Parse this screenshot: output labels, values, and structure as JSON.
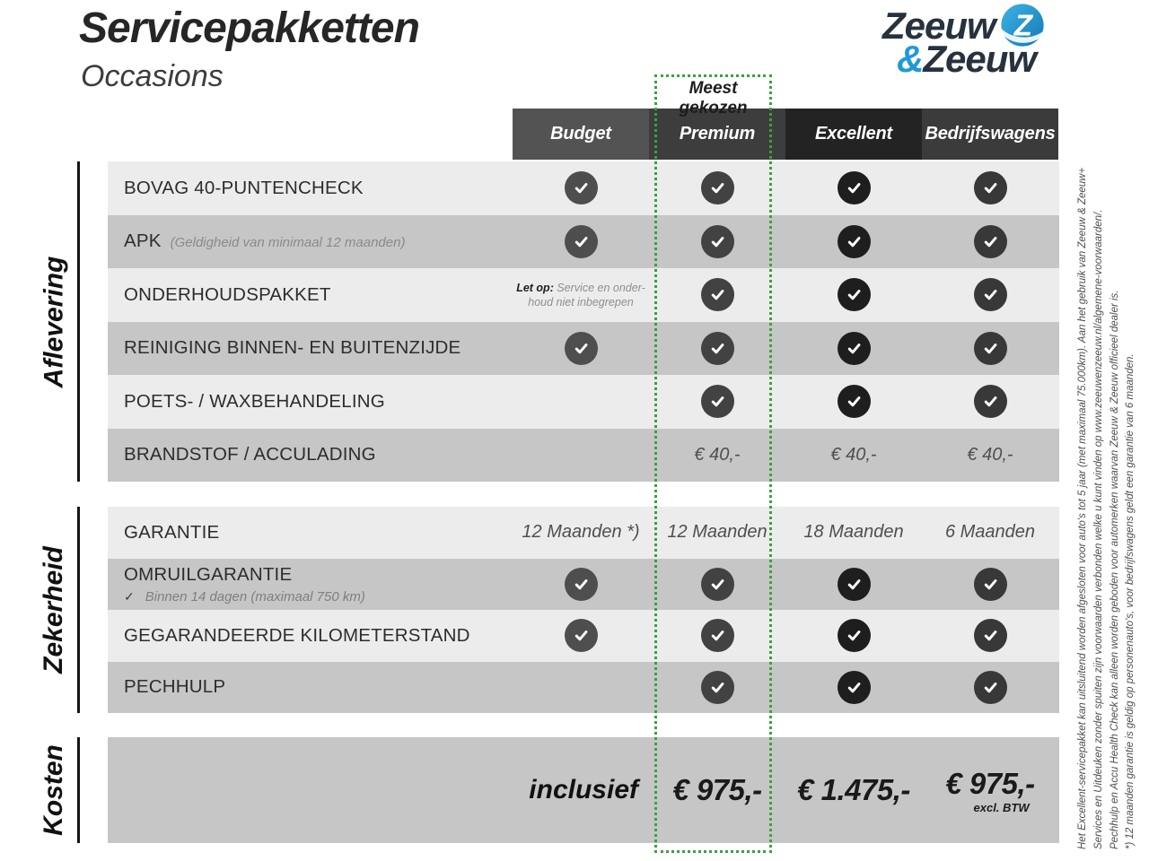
{
  "header": {
    "title": "Servicepakketten",
    "subtitle": "Occasions"
  },
  "logo": {
    "word1": "Zeeuw",
    "amp": "&",
    "word2": "Zeeuw"
  },
  "badge": {
    "label": "Meest gekozen"
  },
  "columns": [
    {
      "key": "budget",
      "label": "Budget",
      "header_color": "#535353",
      "check_color": "#4E4E4E"
    },
    {
      "key": "premium",
      "label": "Premium",
      "header_color": "#3D3D3D",
      "check_color": "#424242",
      "highlight": true
    },
    {
      "key": "excellent",
      "label": "Excellent",
      "header_color": "#232323",
      "check_color": "#1E1E1E"
    },
    {
      "key": "bedrijfswagens",
      "label": "Bedrijfswagens",
      "header_color": "#3B3B3B",
      "check_color": "#383838"
    }
  ],
  "sections": [
    {
      "label": "Aflevering",
      "rows": [
        {
          "label": "BOVAG 40-PUNTENCHECK",
          "cells": [
            {
              "t": "check"
            },
            {
              "t": "check"
            },
            {
              "t": "check"
            },
            {
              "t": "check"
            }
          ]
        },
        {
          "label": "APK",
          "note": "(Geldigheid van minimaal 12 maanden)",
          "cells": [
            {
              "t": "check"
            },
            {
              "t": "check"
            },
            {
              "t": "check"
            },
            {
              "t": "check"
            }
          ]
        },
        {
          "label": "ONDERHOUDSPAKKET",
          "cells": [
            {
              "t": "note",
              "bold": "Let op:",
              "lines": [
                "Service en onder-",
                "houd niet inbegrepen"
              ]
            },
            {
              "t": "check"
            },
            {
              "t": "check"
            },
            {
              "t": "check"
            }
          ]
        },
        {
          "label": "REINIGING BINNEN- EN BUITENZIJDE",
          "cells": [
            {
              "t": "check"
            },
            {
              "t": "check"
            },
            {
              "t": "check"
            },
            {
              "t": "check"
            }
          ]
        },
        {
          "label": "POETS- / WAXBEHANDELING",
          "cells": [
            null,
            {
              "t": "check"
            },
            {
              "t": "check"
            },
            {
              "t": "check"
            }
          ]
        },
        {
          "label": "BRANDSTOF / ACCULADING",
          "cells": [
            null,
            {
              "t": "txt",
              "v": "€ 40,-"
            },
            {
              "t": "txt",
              "v": "€ 40,-"
            },
            {
              "t": "txt",
              "v": "€ 40,-"
            }
          ]
        }
      ]
    },
    {
      "label": "Zekerheid",
      "rows": [
        {
          "label": "GARANTIE",
          "cells": [
            {
              "t": "txt",
              "v": "12 Maanden *)"
            },
            {
              "t": "txt",
              "v": "12 Maanden"
            },
            {
              "t": "txt",
              "v": "18 Maanden"
            },
            {
              "t": "txt",
              "v": "6 Maanden"
            }
          ]
        },
        {
          "label": "OMRUILGARANTIE",
          "sub_bullet": "✓",
          "sub": "Binnen 14 dagen (maximaal 750 km)",
          "cells": [
            {
              "t": "check"
            },
            {
              "t": "check"
            },
            {
              "t": "check"
            },
            {
              "t": "check"
            }
          ]
        },
        {
          "label": "GEGARANDEERDE KILOMETERSTAND",
          "cells": [
            {
              "t": "check"
            },
            {
              "t": "check"
            },
            {
              "t": "check"
            },
            {
              "t": "check"
            }
          ]
        },
        {
          "label": "PECHHULP",
          "cells": [
            null,
            {
              "t": "check"
            },
            {
              "t": "check"
            },
            {
              "t": "check"
            }
          ]
        }
      ]
    },
    {
      "label": "Kosten",
      "rows": [
        {
          "label": "",
          "cells": [
            {
              "t": "incl",
              "v": "inclusief"
            },
            {
              "t": "price",
              "v": "€ 975,-"
            },
            {
              "t": "price",
              "v": "€ 1.475,-"
            },
            {
              "t": "price",
              "v": "€ 975,-",
              "sub": "excl. BTW"
            }
          ]
        }
      ]
    }
  ],
  "fineprint": {
    "lines": [
      "Het Excellent-servicepakket kan uitsluitend worden afgesloten voor auto's tot 5 jaar (met maximaal 75.000km). Aan het gebruik van Zeeuw & Zeeuw+",
      "Services en Uitdeuken zonder spuiten zijn voorwaarden verbonden welke u kunt vinden op www.zeeuwenzeeuw.nl/algemene-voorwaarden/.",
      "Pechhulp en Accu Health Check kan alleen worden geboden voor automerken waarvan Zeeuw & Zeeuw officieel dealer is.",
      "*) 12 maanden garantie is geldig op personenauto's, voor bedrijfswagens geldt een garantie van 6 maanden."
    ]
  },
  "colors": {
    "highlight_green": "#3AA23A",
    "row_light": "#ECECEC",
    "row_dark": "#C6C6C6",
    "logo_navy": "#27323F",
    "logo_blue": "#2199D6"
  }
}
